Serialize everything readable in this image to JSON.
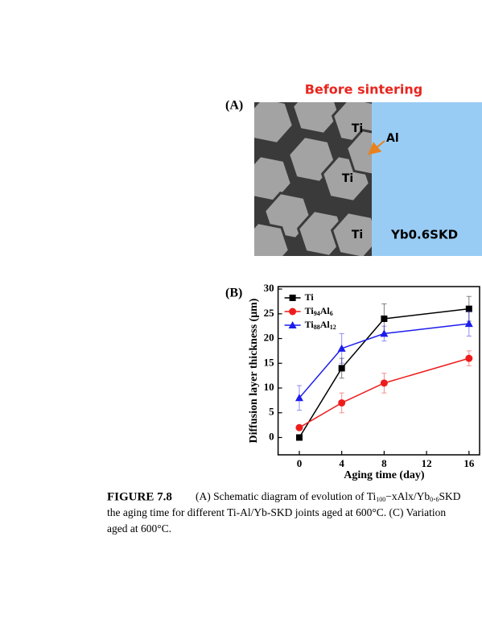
{
  "panel_a": {
    "label": "(A)",
    "title": "Before sintering",
    "grain_labels": [
      "Ti",
      "Ti",
      "Ti"
    ],
    "interlayer_label": "Al",
    "substrate_label": "Yb0.6SKD"
  },
  "panel_b": {
    "label": "(B)"
  },
  "chart_data": {
    "type": "line",
    "x_label": "Aging time (day)",
    "y_label": "Diffusion layer thickness (μm)",
    "x": [
      0,
      4,
      8,
      16
    ],
    "series": [
      {
        "name": "Ti",
        "color": "#000000",
        "marker": "square",
        "values": [
          0,
          14,
          24,
          26
        ],
        "errors": [
          0.5,
          2,
          3,
          2.5
        ]
      },
      {
        "name": "Ti94Al6",
        "color": "#ee1c1c",
        "marker": "circle",
        "values": [
          2,
          7,
          11,
          16
        ],
        "errors": [
          0.5,
          2,
          2,
          1.5
        ]
      },
      {
        "name": "Ti88Al12",
        "color": "#1c1cee",
        "marker": "triangle",
        "values": [
          8,
          18,
          21,
          23
        ],
        "errors": [
          2.5,
          3,
          1.5,
          2.5
        ]
      }
    ],
    "xlim": [
      -2,
      17
    ],
    "ylim": [
      -3.5,
      30.5
    ],
    "xticks": [
      0,
      4,
      8,
      12,
      16
    ],
    "yticks": [
      0,
      5,
      10,
      15,
      20,
      25,
      30
    ],
    "legend": "upper left"
  },
  "caption": {
    "figure_label": "FIGURE 7.8",
    "lines": [
      "(A) Schematic diagram of evolution of Ti100−xAlx/Yb0.6SKD",
      "the aging time for different Ti-Al/Yb-SKD joints aged at 600°C. (C) Variation",
      "aged at 600°C."
    ]
  }
}
